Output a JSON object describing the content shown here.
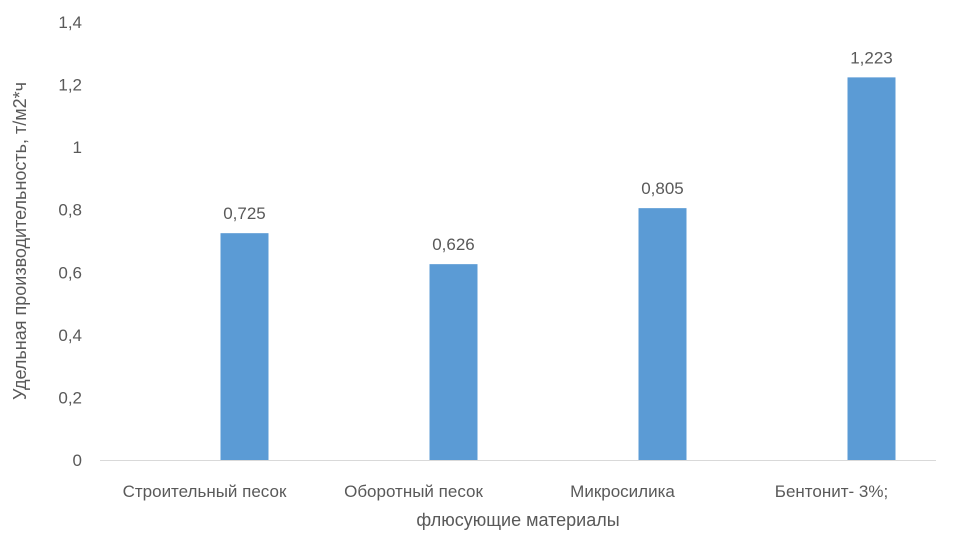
{
  "chart_data": {
    "type": "bar",
    "title": "",
    "xlabel": "флюсующие материалы",
    "ylabel": "Удельная производительность, т/м2*ч",
    "categories": [
      "Строительный песок",
      "Оборотный песок",
      "Микросилика",
      "Бентонит- 3%;"
    ],
    "values": [
      0.725,
      0.626,
      0.805,
      1.223
    ],
    "data_labels": [
      "0,725",
      "0,626",
      "0,805",
      "1,223"
    ],
    "ylim": [
      0,
      1.4
    ],
    "yticks": [
      0,
      0.2,
      0.4,
      0.6,
      0.8,
      1,
      1.2,
      1.4
    ],
    "ytick_labels": [
      "0",
      "0,2",
      "0,4",
      "0,6",
      "0,8",
      "1",
      "1,2",
      "1,4"
    ],
    "grid": false,
    "legend": "none",
    "bar_color": "#5b9bd5",
    "axis_color": "#d9d9d9",
    "text_color": "#595959"
  }
}
